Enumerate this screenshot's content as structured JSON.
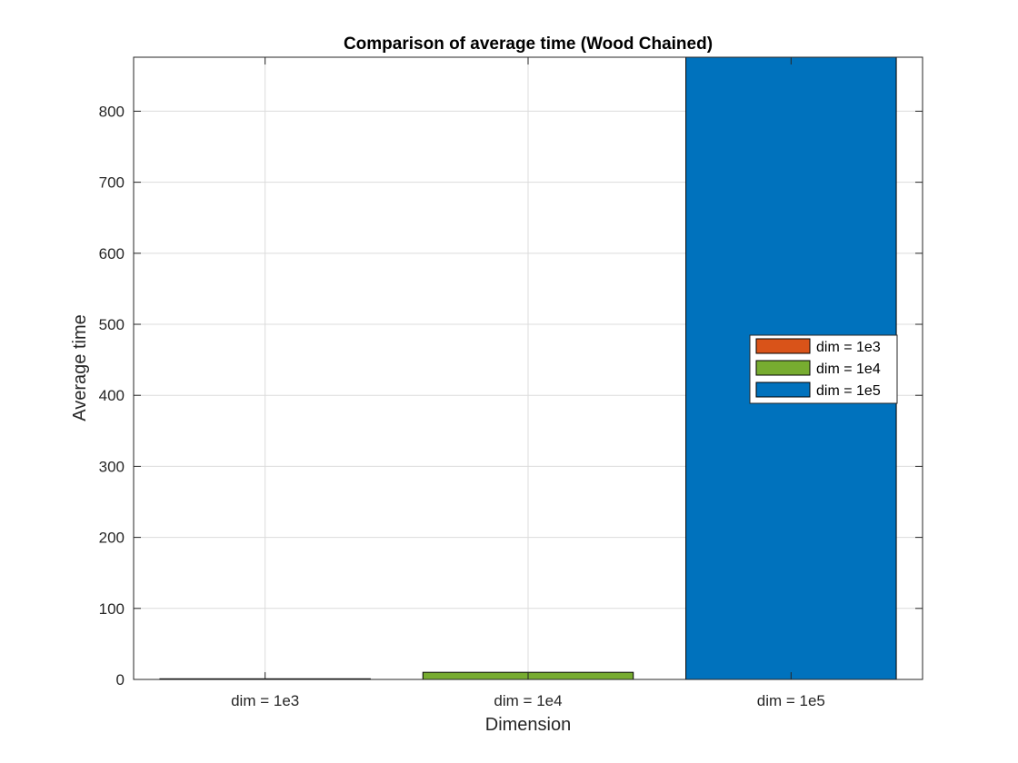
{
  "chart_data": {
    "type": "bar",
    "title": "Comparison of average time (Wood Chained)",
    "xlabel": "Dimension",
    "ylabel": "Average time",
    "categories": [
      "dim = 1e3",
      "dim = 1e4",
      "dim = 1e5"
    ],
    "values": [
      0.9,
      10,
      876
    ],
    "colors": [
      "#D95319",
      "#77AC30",
      "#0072BD"
    ],
    "ylim": [
      0,
      876
    ],
    "yticks": [
      0,
      100,
      200,
      300,
      400,
      500,
      600,
      700,
      800
    ],
    "grid": true,
    "legend": {
      "placement": "right",
      "entries": [
        "dim = 1e3",
        "dim = 1e4",
        "dim = 1e5"
      ]
    }
  }
}
